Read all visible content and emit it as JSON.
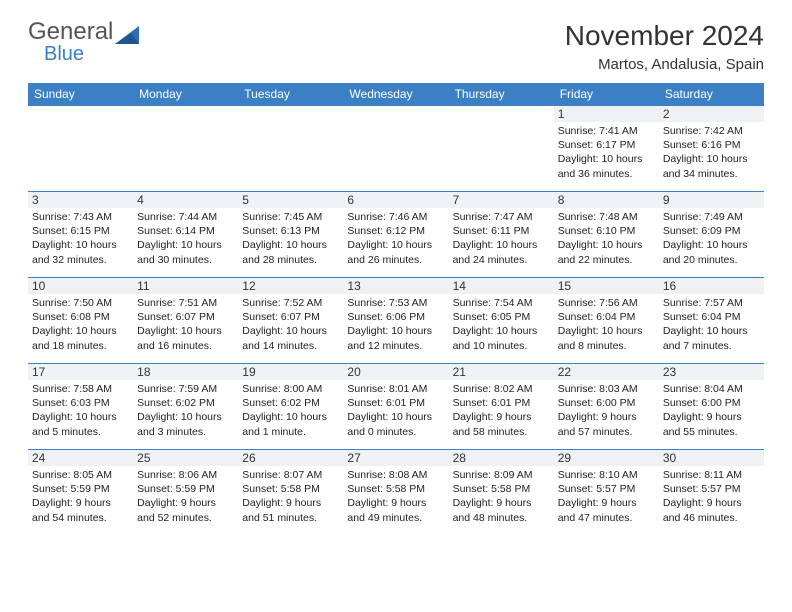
{
  "brand": {
    "part1": "General",
    "part2": "Blue",
    "triangle_color": "#2f6db5"
  },
  "title": "November 2024",
  "location": "Martos, Andalusia, Spain",
  "colors": {
    "header_bg": "#3b7fc4",
    "border": "#3b7fc4",
    "daynum_bg": "#eef2f5"
  },
  "weekdays": [
    "Sunday",
    "Monday",
    "Tuesday",
    "Wednesday",
    "Thursday",
    "Friday",
    "Saturday"
  ],
  "weeks": [
    [
      null,
      null,
      null,
      null,
      null,
      {
        "n": "1",
        "sr": "Sunrise: 7:41 AM",
        "ss": "Sunset: 6:17 PM",
        "dl": "Daylight: 10 hours and 36 minutes."
      },
      {
        "n": "2",
        "sr": "Sunrise: 7:42 AM",
        "ss": "Sunset: 6:16 PM",
        "dl": "Daylight: 10 hours and 34 minutes."
      }
    ],
    [
      {
        "n": "3",
        "sr": "Sunrise: 7:43 AM",
        "ss": "Sunset: 6:15 PM",
        "dl": "Daylight: 10 hours and 32 minutes."
      },
      {
        "n": "4",
        "sr": "Sunrise: 7:44 AM",
        "ss": "Sunset: 6:14 PM",
        "dl": "Daylight: 10 hours and 30 minutes."
      },
      {
        "n": "5",
        "sr": "Sunrise: 7:45 AM",
        "ss": "Sunset: 6:13 PM",
        "dl": "Daylight: 10 hours and 28 minutes."
      },
      {
        "n": "6",
        "sr": "Sunrise: 7:46 AM",
        "ss": "Sunset: 6:12 PM",
        "dl": "Daylight: 10 hours and 26 minutes."
      },
      {
        "n": "7",
        "sr": "Sunrise: 7:47 AM",
        "ss": "Sunset: 6:11 PM",
        "dl": "Daylight: 10 hours and 24 minutes."
      },
      {
        "n": "8",
        "sr": "Sunrise: 7:48 AM",
        "ss": "Sunset: 6:10 PM",
        "dl": "Daylight: 10 hours and 22 minutes."
      },
      {
        "n": "9",
        "sr": "Sunrise: 7:49 AM",
        "ss": "Sunset: 6:09 PM",
        "dl": "Daylight: 10 hours and 20 minutes."
      }
    ],
    [
      {
        "n": "10",
        "sr": "Sunrise: 7:50 AM",
        "ss": "Sunset: 6:08 PM",
        "dl": "Daylight: 10 hours and 18 minutes."
      },
      {
        "n": "11",
        "sr": "Sunrise: 7:51 AM",
        "ss": "Sunset: 6:07 PM",
        "dl": "Daylight: 10 hours and 16 minutes."
      },
      {
        "n": "12",
        "sr": "Sunrise: 7:52 AM",
        "ss": "Sunset: 6:07 PM",
        "dl": "Daylight: 10 hours and 14 minutes."
      },
      {
        "n": "13",
        "sr": "Sunrise: 7:53 AM",
        "ss": "Sunset: 6:06 PM",
        "dl": "Daylight: 10 hours and 12 minutes."
      },
      {
        "n": "14",
        "sr": "Sunrise: 7:54 AM",
        "ss": "Sunset: 6:05 PM",
        "dl": "Daylight: 10 hours and 10 minutes."
      },
      {
        "n": "15",
        "sr": "Sunrise: 7:56 AM",
        "ss": "Sunset: 6:04 PM",
        "dl": "Daylight: 10 hours and 8 minutes."
      },
      {
        "n": "16",
        "sr": "Sunrise: 7:57 AM",
        "ss": "Sunset: 6:04 PM",
        "dl": "Daylight: 10 hours and 7 minutes."
      }
    ],
    [
      {
        "n": "17",
        "sr": "Sunrise: 7:58 AM",
        "ss": "Sunset: 6:03 PM",
        "dl": "Daylight: 10 hours and 5 minutes."
      },
      {
        "n": "18",
        "sr": "Sunrise: 7:59 AM",
        "ss": "Sunset: 6:02 PM",
        "dl": "Daylight: 10 hours and 3 minutes."
      },
      {
        "n": "19",
        "sr": "Sunrise: 8:00 AM",
        "ss": "Sunset: 6:02 PM",
        "dl": "Daylight: 10 hours and 1 minute."
      },
      {
        "n": "20",
        "sr": "Sunrise: 8:01 AM",
        "ss": "Sunset: 6:01 PM",
        "dl": "Daylight: 10 hours and 0 minutes."
      },
      {
        "n": "21",
        "sr": "Sunrise: 8:02 AM",
        "ss": "Sunset: 6:01 PM",
        "dl": "Daylight: 9 hours and 58 minutes."
      },
      {
        "n": "22",
        "sr": "Sunrise: 8:03 AM",
        "ss": "Sunset: 6:00 PM",
        "dl": "Daylight: 9 hours and 57 minutes."
      },
      {
        "n": "23",
        "sr": "Sunrise: 8:04 AM",
        "ss": "Sunset: 6:00 PM",
        "dl": "Daylight: 9 hours and 55 minutes."
      }
    ],
    [
      {
        "n": "24",
        "sr": "Sunrise: 8:05 AM",
        "ss": "Sunset: 5:59 PM",
        "dl": "Daylight: 9 hours and 54 minutes."
      },
      {
        "n": "25",
        "sr": "Sunrise: 8:06 AM",
        "ss": "Sunset: 5:59 PM",
        "dl": "Daylight: 9 hours and 52 minutes."
      },
      {
        "n": "26",
        "sr": "Sunrise: 8:07 AM",
        "ss": "Sunset: 5:58 PM",
        "dl": "Daylight: 9 hours and 51 minutes."
      },
      {
        "n": "27",
        "sr": "Sunrise: 8:08 AM",
        "ss": "Sunset: 5:58 PM",
        "dl": "Daylight: 9 hours and 49 minutes."
      },
      {
        "n": "28",
        "sr": "Sunrise: 8:09 AM",
        "ss": "Sunset: 5:58 PM",
        "dl": "Daylight: 9 hours and 48 minutes."
      },
      {
        "n": "29",
        "sr": "Sunrise: 8:10 AM",
        "ss": "Sunset: 5:57 PM",
        "dl": "Daylight: 9 hours and 47 minutes."
      },
      {
        "n": "30",
        "sr": "Sunrise: 8:11 AM",
        "ss": "Sunset: 5:57 PM",
        "dl": "Daylight: 9 hours and 46 minutes."
      }
    ]
  ]
}
